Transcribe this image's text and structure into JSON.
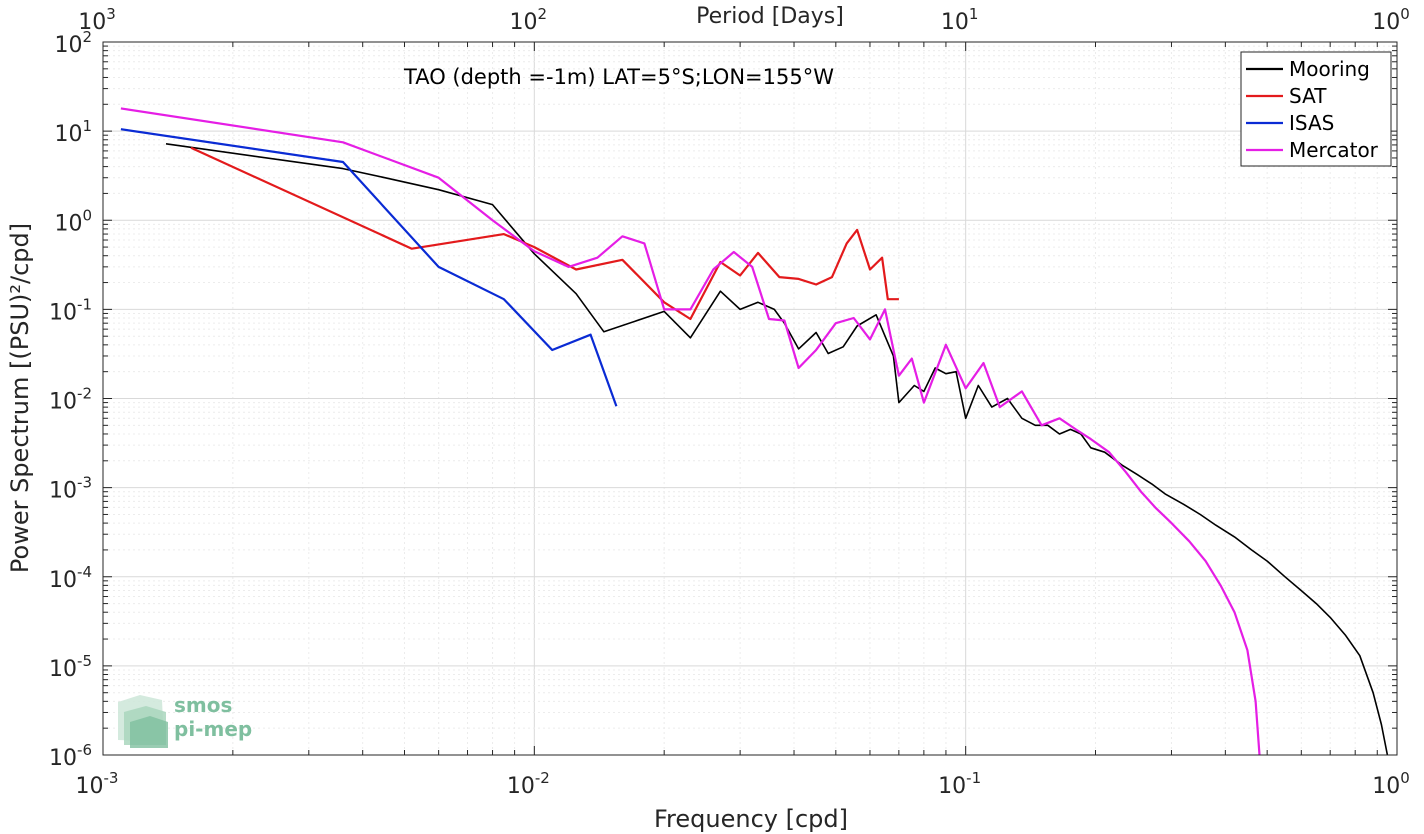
{
  "chart_data": {
    "type": "line",
    "annotation": "TAO (depth =-1m) LAT=5°S;LON=155°W",
    "xlabel": "Frequency [cpd]",
    "ylabel": "Power Spectrum [(PSU)²/cpd]",
    "top_axis_label": "Period [Days]",
    "xscale": "log",
    "yscale": "log",
    "xlim": [
      0.001,
      1
    ],
    "ylim": [
      1e-06,
      100
    ],
    "grid": true,
    "legend_position": "top-right",
    "x_ticks": [
      {
        "base": "10",
        "exp": "-3"
      },
      {
        "base": "10",
        "exp": "-2"
      },
      {
        "base": "10",
        "exp": "-1"
      },
      {
        "base": "10",
        "exp": "0"
      }
    ],
    "y_ticks": [
      {
        "base": "10",
        "exp": "-6"
      },
      {
        "base": "10",
        "exp": "-5"
      },
      {
        "base": "10",
        "exp": "-4"
      },
      {
        "base": "10",
        "exp": "-3"
      },
      {
        "base": "10",
        "exp": "-2"
      },
      {
        "base": "10",
        "exp": "-1"
      },
      {
        "base": "10",
        "exp": "0"
      },
      {
        "base": "10",
        "exp": "1"
      },
      {
        "base": "10",
        "exp": "2"
      }
    ],
    "top_ticks": [
      {
        "base": "10",
        "exp": "3"
      },
      {
        "base": "10",
        "exp": "2"
      },
      {
        "base": "10",
        "exp": "1"
      },
      {
        "base": "10",
        "exp": "0"
      }
    ],
    "series": [
      {
        "name": "Mooring",
        "color": "#000000",
        "points": [
          [
            0.0014,
            7.2
          ],
          [
            0.0036,
            3.8
          ],
          [
            0.0045,
            3.0
          ],
          [
            0.006,
            2.2
          ],
          [
            0.008,
            1.5
          ],
          [
            0.01,
            0.42
          ],
          [
            0.0125,
            0.15
          ],
          [
            0.0145,
            0.056
          ],
          [
            0.02,
            0.095
          ],
          [
            0.023,
            0.048
          ],
          [
            0.027,
            0.16
          ],
          [
            0.03,
            0.1
          ],
          [
            0.033,
            0.12
          ],
          [
            0.036,
            0.1
          ],
          [
            0.038,
            0.07
          ],
          [
            0.041,
            0.036
          ],
          [
            0.045,
            0.055
          ],
          [
            0.048,
            0.032
          ],
          [
            0.052,
            0.038
          ],
          [
            0.056,
            0.065
          ],
          [
            0.062,
            0.087
          ],
          [
            0.068,
            0.03
          ],
          [
            0.07,
            0.009
          ],
          [
            0.076,
            0.014
          ],
          [
            0.08,
            0.012
          ],
          [
            0.085,
            0.022
          ],
          [
            0.09,
            0.019
          ],
          [
            0.095,
            0.02
          ],
          [
            0.1,
            0.006
          ],
          [
            0.107,
            0.014
          ],
          [
            0.115,
            0.008
          ],
          [
            0.125,
            0.01
          ],
          [
            0.135,
            0.006
          ],
          [
            0.145,
            0.005
          ],
          [
            0.155,
            0.005
          ],
          [
            0.165,
            0.004
          ],
          [
            0.175,
            0.0045
          ],
          [
            0.185,
            0.004
          ],
          [
            0.195,
            0.0028
          ],
          [
            0.21,
            0.0025
          ],
          [
            0.23,
            0.0018
          ],
          [
            0.25,
            0.0014
          ],
          [
            0.27,
            0.0011
          ],
          [
            0.29,
            0.00085
          ],
          [
            0.32,
            0.00065
          ],
          [
            0.35,
            0.0005
          ],
          [
            0.38,
            0.00038
          ],
          [
            0.42,
            0.00028
          ],
          [
            0.46,
            0.0002
          ],
          [
            0.5,
            0.00015
          ],
          [
            0.55,
            0.0001
          ],
          [
            0.6,
            7e-05
          ],
          [
            0.65,
            5e-05
          ],
          [
            0.7,
            3.5e-05
          ],
          [
            0.76,
            2.2e-05
          ],
          [
            0.82,
            1.3e-05
          ],
          [
            0.88,
            5e-06
          ],
          [
            0.92,
            2.2e-06
          ],
          [
            0.95,
            1e-06
          ]
        ]
      },
      {
        "name": "SAT",
        "color": "#e31a1c",
        "points": [
          [
            0.0016,
            6.5
          ],
          [
            0.0052,
            0.48
          ],
          [
            0.0085,
            0.7
          ],
          [
            0.01,
            0.5
          ],
          [
            0.0125,
            0.28
          ],
          [
            0.016,
            0.36
          ],
          [
            0.02,
            0.12
          ],
          [
            0.023,
            0.078
          ],
          [
            0.027,
            0.34
          ],
          [
            0.03,
            0.24
          ],
          [
            0.033,
            0.43
          ],
          [
            0.037,
            0.23
          ],
          [
            0.041,
            0.22
          ],
          [
            0.045,
            0.19
          ],
          [
            0.049,
            0.23
          ],
          [
            0.053,
            0.55
          ],
          [
            0.056,
            0.78
          ],
          [
            0.06,
            0.28
          ],
          [
            0.064,
            0.38
          ],
          [
            0.066,
            0.13
          ],
          [
            0.07,
            0.13
          ]
        ]
      },
      {
        "name": "ISAS",
        "color": "#0a2bd4",
        "points": [
          [
            0.0011,
            10.5
          ],
          [
            0.0036,
            4.5
          ],
          [
            0.006,
            0.3
          ],
          [
            0.0085,
            0.13
          ],
          [
            0.011,
            0.035
          ],
          [
            0.0135,
            0.052
          ],
          [
            0.0155,
            0.0082
          ]
        ]
      },
      {
        "name": "Mercator",
        "color": "#e51ee5",
        "points": [
          [
            0.0011,
            18
          ],
          [
            0.0036,
            7.5
          ],
          [
            0.006,
            3.0
          ],
          [
            0.008,
            1.0
          ],
          [
            0.01,
            0.45
          ],
          [
            0.012,
            0.3
          ],
          [
            0.014,
            0.38
          ],
          [
            0.016,
            0.66
          ],
          [
            0.018,
            0.55
          ],
          [
            0.02,
            0.1
          ],
          [
            0.023,
            0.1
          ],
          [
            0.026,
            0.28
          ],
          [
            0.029,
            0.44
          ],
          [
            0.032,
            0.3
          ],
          [
            0.035,
            0.078
          ],
          [
            0.038,
            0.075
          ],
          [
            0.041,
            0.022
          ],
          [
            0.045,
            0.035
          ],
          [
            0.05,
            0.07
          ],
          [
            0.055,
            0.08
          ],
          [
            0.06,
            0.046
          ],
          [
            0.065,
            0.1
          ],
          [
            0.07,
            0.018
          ],
          [
            0.075,
            0.028
          ],
          [
            0.08,
            0.009
          ],
          [
            0.09,
            0.04
          ],
          [
            0.1,
            0.013
          ],
          [
            0.11,
            0.025
          ],
          [
            0.12,
            0.008
          ],
          [
            0.135,
            0.012
          ],
          [
            0.15,
            0.005
          ],
          [
            0.165,
            0.006
          ],
          [
            0.18,
            0.0045
          ],
          [
            0.195,
            0.0035
          ],
          [
            0.215,
            0.0025
          ],
          [
            0.235,
            0.0015
          ],
          [
            0.255,
            0.0009
          ],
          [
            0.275,
            0.0006
          ],
          [
            0.3,
            0.0004
          ],
          [
            0.33,
            0.00025
          ],
          [
            0.36,
            0.00015
          ],
          [
            0.39,
            8e-05
          ],
          [
            0.42,
            4e-05
          ],
          [
            0.45,
            1.5e-05
          ],
          [
            0.47,
            4e-06
          ],
          [
            0.48,
            1e-06
          ]
        ]
      }
    ]
  },
  "logo": {
    "line1": "smos",
    "line2": "pi-mep"
  }
}
